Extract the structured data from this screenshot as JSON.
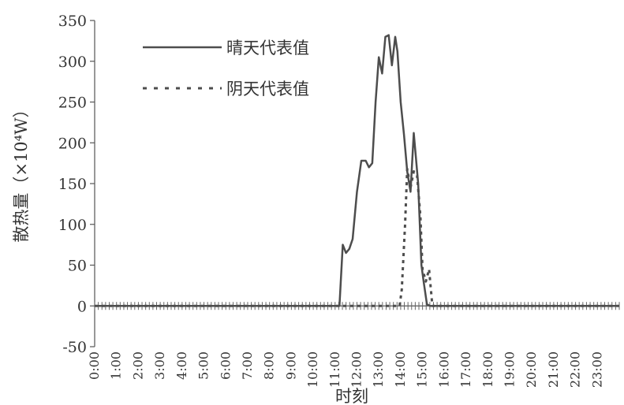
{
  "chart_data": {
    "type": "line",
    "title": "",
    "xlabel": "时刻",
    "ylabel": "散热量（×10⁴W）",
    "ylim": [
      -50,
      350
    ],
    "yticks": [
      -50,
      0,
      50,
      100,
      150,
      200,
      250,
      300,
      350
    ],
    "xlim": [
      0,
      24
    ],
    "xticks": [
      "0:00",
      "1:00",
      "2:00",
      "3:00",
      "4:00",
      "5:00",
      "6:00",
      "7:00",
      "8:00",
      "9:00",
      "10:00",
      "11:00",
      "12:00",
      "13:00",
      "14:00",
      "15:00",
      "16:00",
      "17:00",
      "18:00",
      "19:00",
      "20:00",
      "21:00",
      "22:00",
      "23:00"
    ],
    "grid": false,
    "legend_position": "top-left",
    "series": [
      {
        "name": "晴天代表值",
        "style": "solid",
        "color": "#4d4d4d",
        "x": [
          0,
          11.2,
          11.35,
          11.5,
          11.65,
          11.8,
          12.0,
          12.2,
          12.4,
          12.55,
          12.7,
          12.85,
          13.0,
          13.15,
          13.3,
          13.45,
          13.6,
          13.75,
          13.85,
          14.0,
          14.15,
          14.3,
          14.45,
          14.6,
          14.8,
          14.95,
          15.05,
          15.2,
          15.35,
          24
        ],
        "y": [
          0,
          0,
          75,
          65,
          70,
          82,
          140,
          178,
          178,
          170,
          175,
          250,
          305,
          285,
          330,
          332,
          295,
          330,
          312,
          250,
          210,
          165,
          140,
          212,
          150,
          50,
          30,
          2,
          0,
          0
        ]
      },
      {
        "name": "阴天代表值",
        "style": "dotted",
        "color": "#4d4d4d",
        "x": [
          0,
          13.95,
          14.05,
          14.2,
          14.3,
          14.45,
          14.6,
          14.75,
          14.9,
          15.0,
          15.15,
          15.3,
          15.45,
          24
        ],
        "y": [
          0,
          0,
          20,
          100,
          168,
          145,
          165,
          160,
          110,
          45,
          30,
          45,
          0,
          0
        ]
      }
    ]
  }
}
